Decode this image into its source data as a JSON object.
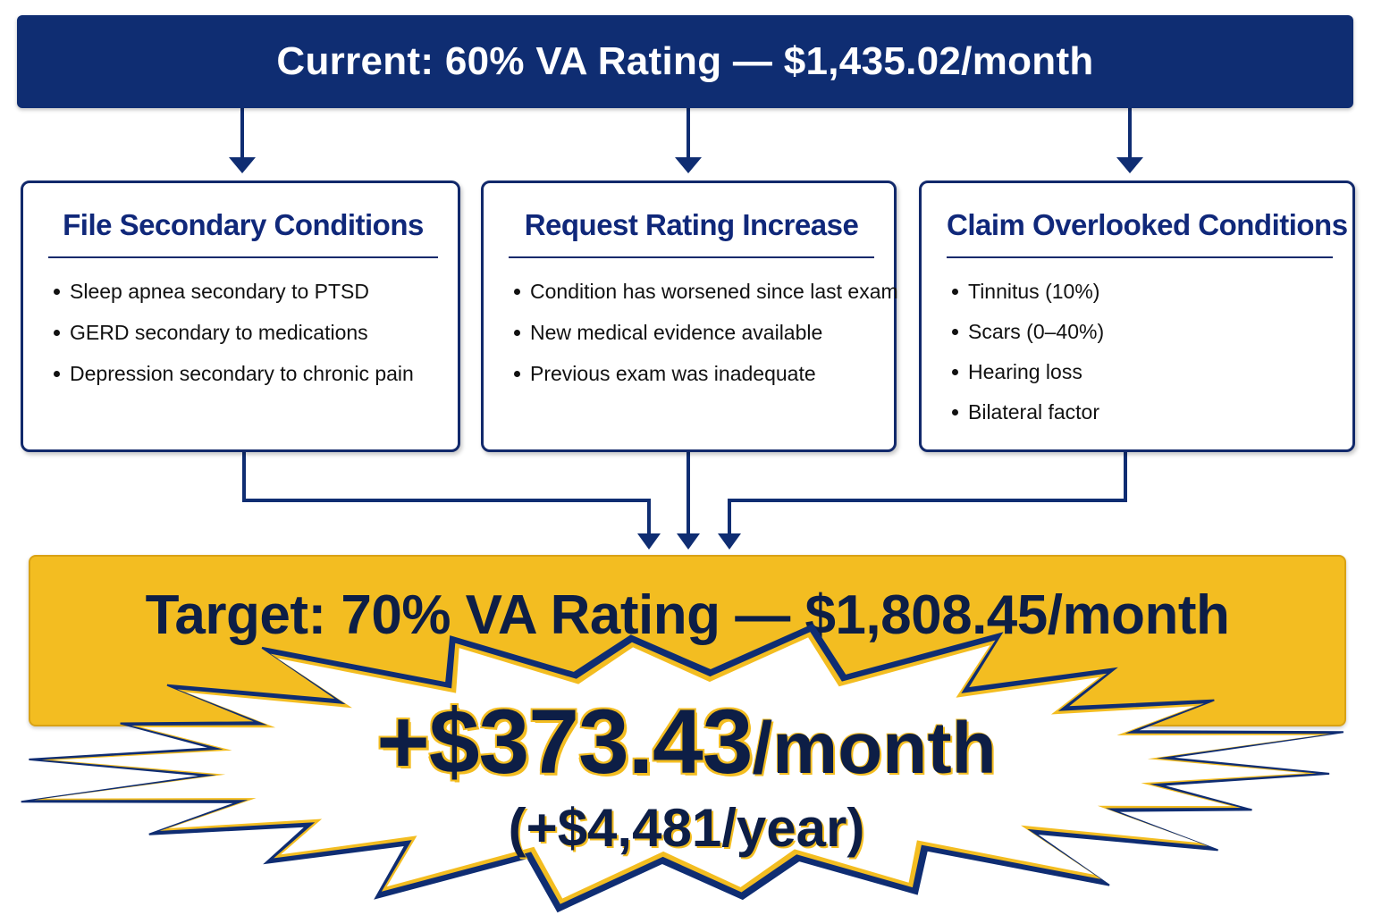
{
  "current": {
    "text": "Current: 60% VA Rating — $1,435.02/month",
    "color": "#0f2d72"
  },
  "cards": [
    {
      "title": "File Secondary Conditions",
      "items": [
        "Sleep apnea secondary to PTSD",
        "GERD secondary to medications",
        "Depression secondary to chronic pain"
      ]
    },
    {
      "title": "Request Rating Increase",
      "items": [
        "Condition has worsened since last exam",
        "New medical evidence available",
        "Previous exam was inadequate"
      ]
    },
    {
      "title": "Claim Overlooked Conditions",
      "items": [
        "Tinnitus (10%)",
        "Scars (0–40%)",
        "Hearing loss",
        "Bilateral factor"
      ]
    }
  ],
  "target": {
    "text": "Target: 70% VA Rating — $1,808.45/month",
    "color": "#f3bd21"
  },
  "gain": {
    "amount": "+$373.43",
    "unit": "/month",
    "yearly": "(+$4,481/year)"
  }
}
